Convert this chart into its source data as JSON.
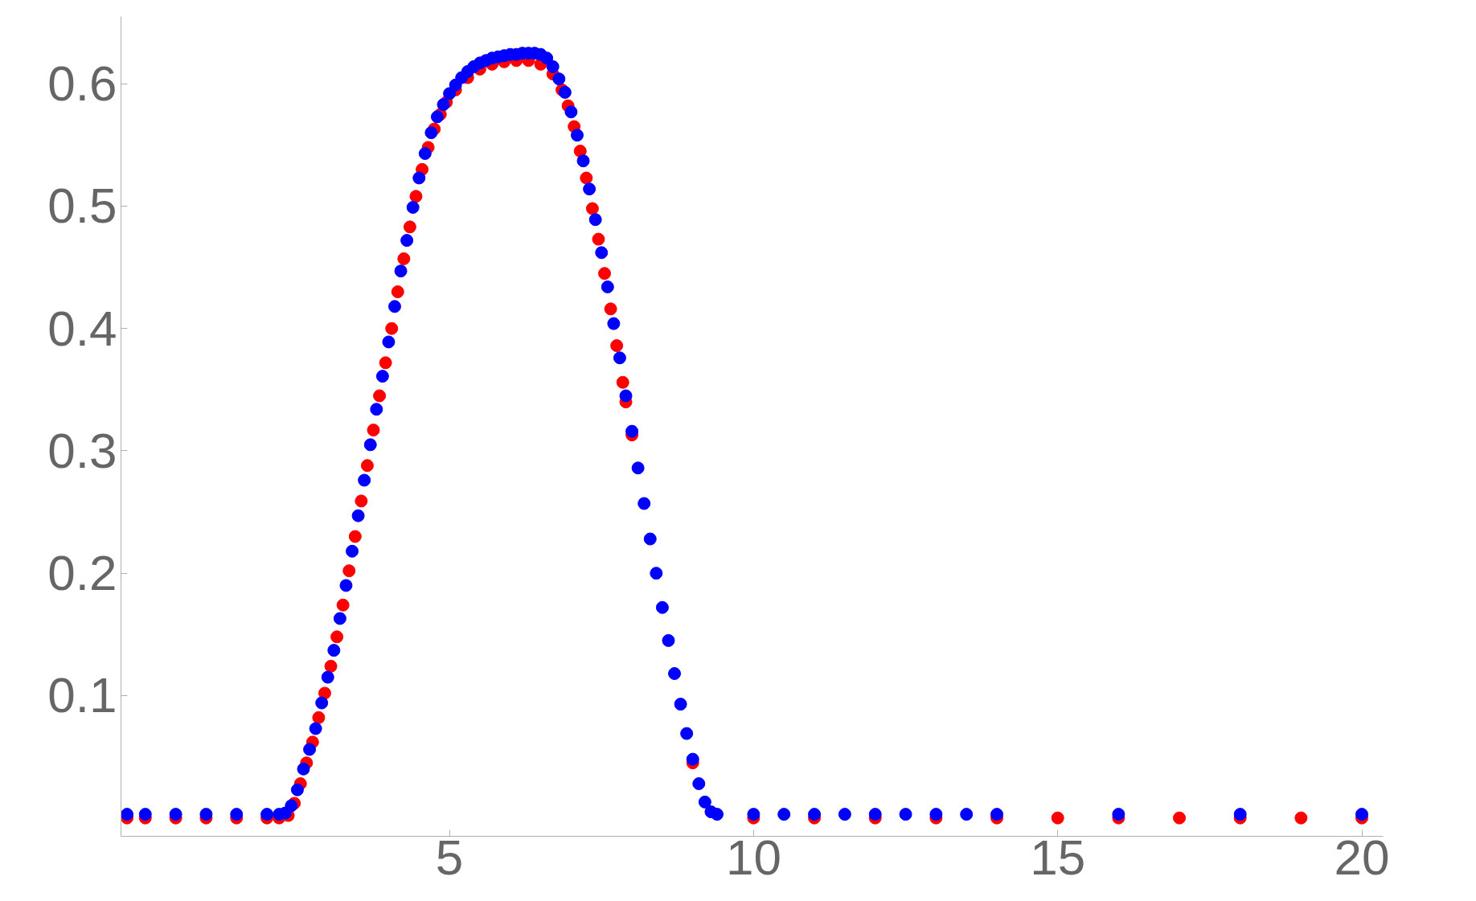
{
  "chart_data": {
    "type": "scatter",
    "marker": "circle",
    "grid": false,
    "xlim": [
      -0.4,
      20.35
    ],
    "ylim": [
      -0.015,
      0.655
    ],
    "xticks": [
      5,
      10,
      15,
      20
    ],
    "yticks": [
      0.1,
      0.2,
      0.3,
      0.4,
      0.5,
      0.6
    ],
    "series": [
      {
        "color": "#ff0000",
        "x": [
          -0.3,
          0,
          0.5,
          1,
          1.5,
          2,
          2.2,
          2.35,
          2.45,
          2.55,
          2.65,
          2.75,
          2.85,
          2.95,
          3.05,
          3.15,
          3.25,
          3.35,
          3.45,
          3.55,
          3.65,
          3.75,
          3.85,
          3.95,
          4.05,
          4.15,
          4.25,
          4.35,
          4.45,
          4.55,
          4.65,
          4.75,
          4.85,
          4.95,
          5.1,
          5.3,
          5.5,
          5.7,
          5.9,
          6.1,
          6.3,
          6.5,
          6.7,
          6.85,
          6.95,
          7.05,
          7.15,
          7.25,
          7.35,
          7.45,
          7.55,
          7.65,
          7.75,
          7.85,
          7.9,
          8.0,
          9.0,
          10,
          11,
          12,
          13,
          14,
          15,
          16,
          17,
          18,
          19,
          20
        ],
        "values": [
          0,
          0,
          0,
          0,
          0,
          0,
          0,
          0.002,
          0.012,
          0.028,
          0.045,
          0.062,
          0.082,
          0.102,
          0.124,
          0.148,
          0.174,
          0.202,
          0.23,
          0.259,
          0.288,
          0.317,
          0.345,
          0.372,
          0.4,
          0.43,
          0.457,
          0.483,
          0.508,
          0.53,
          0.548,
          0.563,
          0.575,
          0.585,
          0.595,
          0.605,
          0.612,
          0.616,
          0.618,
          0.619,
          0.619,
          0.616,
          0.608,
          0.595,
          0.582,
          0.565,
          0.545,
          0.523,
          0.498,
          0.473,
          0.445,
          0.416,
          0.386,
          0.356,
          0.34,
          0.313,
          0.045,
          0,
          0,
          0,
          0,
          0,
          0,
          0,
          0,
          0,
          0,
          0
        ]
      },
      {
        "color": "#0000ff",
        "x": [
          -0.3,
          0,
          0.5,
          1,
          1.5,
          2,
          2.2,
          2.3,
          2.4,
          2.5,
          2.6,
          2.7,
          2.8,
          2.9,
          3.0,
          3.1,
          3.2,
          3.3,
          3.4,
          3.5,
          3.6,
          3.7,
          3.8,
          3.9,
          4.0,
          4.1,
          4.2,
          4.3,
          4.4,
          4.5,
          4.6,
          4.7,
          4.8,
          4.9,
          5.0,
          5.1,
          5.2,
          5.3,
          5.4,
          5.5,
          5.6,
          5.7,
          5.8,
          5.9,
          6.0,
          6.1,
          6.2,
          6.3,
          6.4,
          6.5,
          6.6,
          6.7,
          6.8,
          6.9,
          7.0,
          7.1,
          7.2,
          7.3,
          7.4,
          7.5,
          7.6,
          7.7,
          7.8,
          7.9,
          8.0,
          8.1,
          8.2,
          8.3,
          8.4,
          8.5,
          8.6,
          8.7,
          8.8,
          8.9,
          9.0,
          9.1,
          9.2,
          9.3,
          9.4,
          10,
          10.5,
          11,
          11.5,
          12,
          12.5,
          13,
          13.5,
          14,
          16,
          18,
          20
        ],
        "values": [
          0.003,
          0.003,
          0.003,
          0.003,
          0.003,
          0.003,
          0.003,
          0.004,
          0.01,
          0.023,
          0.04,
          0.056,
          0.073,
          0.094,
          0.115,
          0.137,
          0.163,
          0.19,
          0.218,
          0.247,
          0.276,
          0.305,
          0.334,
          0.361,
          0.389,
          0.418,
          0.447,
          0.472,
          0.499,
          0.523,
          0.543,
          0.56,
          0.573,
          0.583,
          0.592,
          0.599,
          0.605,
          0.61,
          0.614,
          0.617,
          0.619,
          0.621,
          0.622,
          0.623,
          0.624,
          0.624,
          0.625,
          0.625,
          0.625,
          0.624,
          0.621,
          0.614,
          0.604,
          0.593,
          0.577,
          0.558,
          0.537,
          0.514,
          0.489,
          0.462,
          0.434,
          0.404,
          0.376,
          0.345,
          0.316,
          0.286,
          0.257,
          0.228,
          0.2,
          0.172,
          0.145,
          0.118,
          0.093,
          0.069,
          0.048,
          0.028,
          0.013,
          0.005,
          0.003,
          0.003,
          0.003,
          0.003,
          0.003,
          0.003,
          0.003,
          0.003,
          0.003,
          0.003,
          0.003,
          0.003,
          0.003
        ]
      }
    ]
  }
}
